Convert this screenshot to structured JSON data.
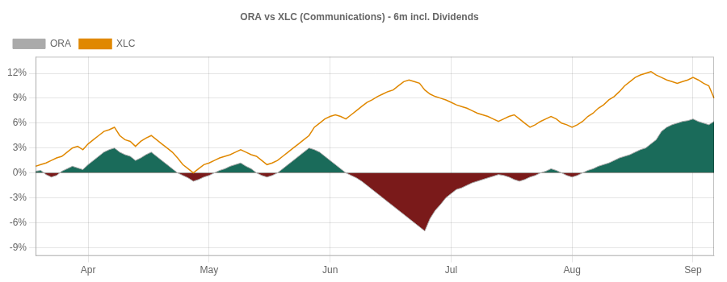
{
  "chart_data": {
    "type": "line",
    "title": "ORA vs XLC (Communications) - 6m incl. Dividends",
    "categories": [
      null,
      null,
      null,
      null,
      null,
      null,
      null,
      null,
      null,
      null,
      "Apr",
      null,
      null,
      null,
      null,
      null,
      null,
      null,
      null,
      null,
      null,
      null,
      null,
      null,
      null,
      null,
      null,
      null,
      null,
      null,
      null,
      null,
      null,
      "May",
      null,
      null,
      null,
      null,
      null,
      null,
      null,
      null,
      null,
      null,
      null,
      null,
      null,
      null,
      null,
      null,
      null,
      null,
      null,
      null,
      null,
      null,
      "Jun",
      null,
      null,
      null,
      null,
      null,
      null,
      null,
      null,
      null,
      null,
      null,
      null,
      null,
      null,
      null,
      null,
      null,
      null,
      null,
      null,
      null,
      null,
      "Jul",
      null,
      null,
      null,
      null,
      null,
      null,
      null,
      null,
      null,
      null,
      null,
      null,
      null,
      null,
      null,
      null,
      null,
      null,
      null,
      null,
      null,
      null,
      "Aug",
      null,
      null,
      null,
      null,
      null,
      null,
      null,
      null,
      null,
      null,
      null,
      null,
      null,
      null,
      null,
      null,
      null,
      null,
      null,
      null,
      null,
      null,
      "Sep",
      null,
      null,
      null,
      null
    ],
    "series": [
      {
        "name": "ORA",
        "color": "#aaaaaa",
        "colors": [
          "#1a6b5a",
          "#7a1a1a"
        ],
        "values": [
          0.002,
          0.003,
          -0.002,
          -0.005,
          -0.003,
          0.002,
          0.005,
          0.008,
          0.006,
          0.004,
          0.01,
          0.015,
          0.02,
          0.025,
          0.028,
          0.03,
          0.025,
          0.022,
          0.02,
          0.015,
          0.018,
          0.022,
          0.025,
          0.02,
          0.015,
          0.01,
          0.005,
          0.0,
          -0.003,
          -0.006,
          -0.01,
          -0.008,
          -0.005,
          -0.003,
          0.0,
          0.003,
          0.005,
          0.008,
          0.01,
          0.012,
          0.008,
          0.005,
          0.0,
          -0.003,
          -0.005,
          -0.003,
          0.0,
          0.005,
          0.01,
          0.015,
          0.02,
          0.025,
          0.03,
          0.028,
          0.025,
          0.02,
          0.015,
          0.01,
          0.005,
          0.0,
          -0.003,
          -0.006,
          -0.01,
          -0.015,
          -0.02,
          -0.025,
          -0.03,
          -0.035,
          -0.04,
          -0.045,
          -0.05,
          -0.055,
          -0.06,
          -0.065,
          -0.07,
          -0.055,
          -0.045,
          -0.038,
          -0.03,
          -0.025,
          -0.02,
          -0.018,
          -0.015,
          -0.012,
          -0.01,
          -0.008,
          -0.006,
          -0.004,
          -0.002,
          -0.003,
          -0.005,
          -0.008,
          -0.01,
          -0.008,
          -0.005,
          -0.003,
          0.0,
          0.002,
          0.005,
          0.003,
          0.0,
          -0.003,
          -0.005,
          -0.003,
          0.0,
          0.003,
          0.005,
          0.008,
          0.01,
          0.012,
          0.015,
          0.018,
          0.02,
          0.022,
          0.025,
          0.028,
          0.03,
          0.035,
          0.04,
          0.05,
          0.055,
          0.058,
          0.06,
          0.062,
          0.063,
          0.065,
          0.062,
          0.06,
          0.058,
          0.062
        ]
      },
      {
        "name": "XLC",
        "color": "#e08800",
        "values": [
          0.008,
          0.01,
          0.012,
          0.015,
          0.018,
          0.02,
          0.025,
          0.03,
          0.032,
          0.028,
          0.035,
          0.04,
          0.045,
          0.05,
          0.052,
          0.055,
          0.045,
          0.04,
          0.038,
          0.032,
          0.038,
          0.042,
          0.045,
          0.04,
          0.035,
          0.03,
          0.025,
          0.018,
          0.01,
          0.005,
          0.0,
          0.005,
          0.01,
          0.012,
          0.015,
          0.018,
          0.02,
          0.022,
          0.025,
          0.028,
          0.025,
          0.022,
          0.02,
          0.015,
          0.01,
          0.012,
          0.015,
          0.02,
          0.025,
          0.03,
          0.035,
          0.04,
          0.045,
          0.055,
          0.06,
          0.065,
          0.068,
          0.07,
          0.068,
          0.065,
          0.07,
          0.075,
          0.08,
          0.085,
          0.088,
          0.092,
          0.095,
          0.098,
          0.1,
          0.105,
          0.11,
          0.112,
          0.11,
          0.108,
          0.1,
          0.095,
          0.092,
          0.09,
          0.088,
          0.085,
          0.082,
          0.08,
          0.078,
          0.075,
          0.072,
          0.07,
          0.068,
          0.065,
          0.062,
          0.065,
          0.068,
          0.07,
          0.065,
          0.06,
          0.055,
          0.058,
          0.062,
          0.065,
          0.068,
          0.065,
          0.06,
          0.058,
          0.055,
          0.058,
          0.062,
          0.068,
          0.072,
          0.078,
          0.082,
          0.088,
          0.092,
          0.098,
          0.105,
          0.11,
          0.115,
          0.118,
          0.12,
          0.122,
          0.118,
          0.115,
          0.112,
          0.11,
          0.108,
          0.11,
          0.112,
          0.115,
          0.112,
          0.108,
          0.105,
          0.09
        ]
      }
    ],
    "ylim": [
      -0.1,
      0.14
    ],
    "yticks": [
      {
        "value": -0.09,
        "label": "-9%"
      },
      {
        "value": -0.06,
        "label": "-6%"
      },
      {
        "value": -0.03,
        "label": "-3%"
      },
      {
        "value": 0.0,
        "label": "0%"
      },
      {
        "value": 0.03,
        "label": "3%"
      },
      {
        "value": 0.06,
        "label": "6%"
      },
      {
        "value": 0.09,
        "label": "9%"
      },
      {
        "value": 0.12,
        "label": "12%"
      }
    ],
    "grid": true,
    "legend": "top-left"
  }
}
